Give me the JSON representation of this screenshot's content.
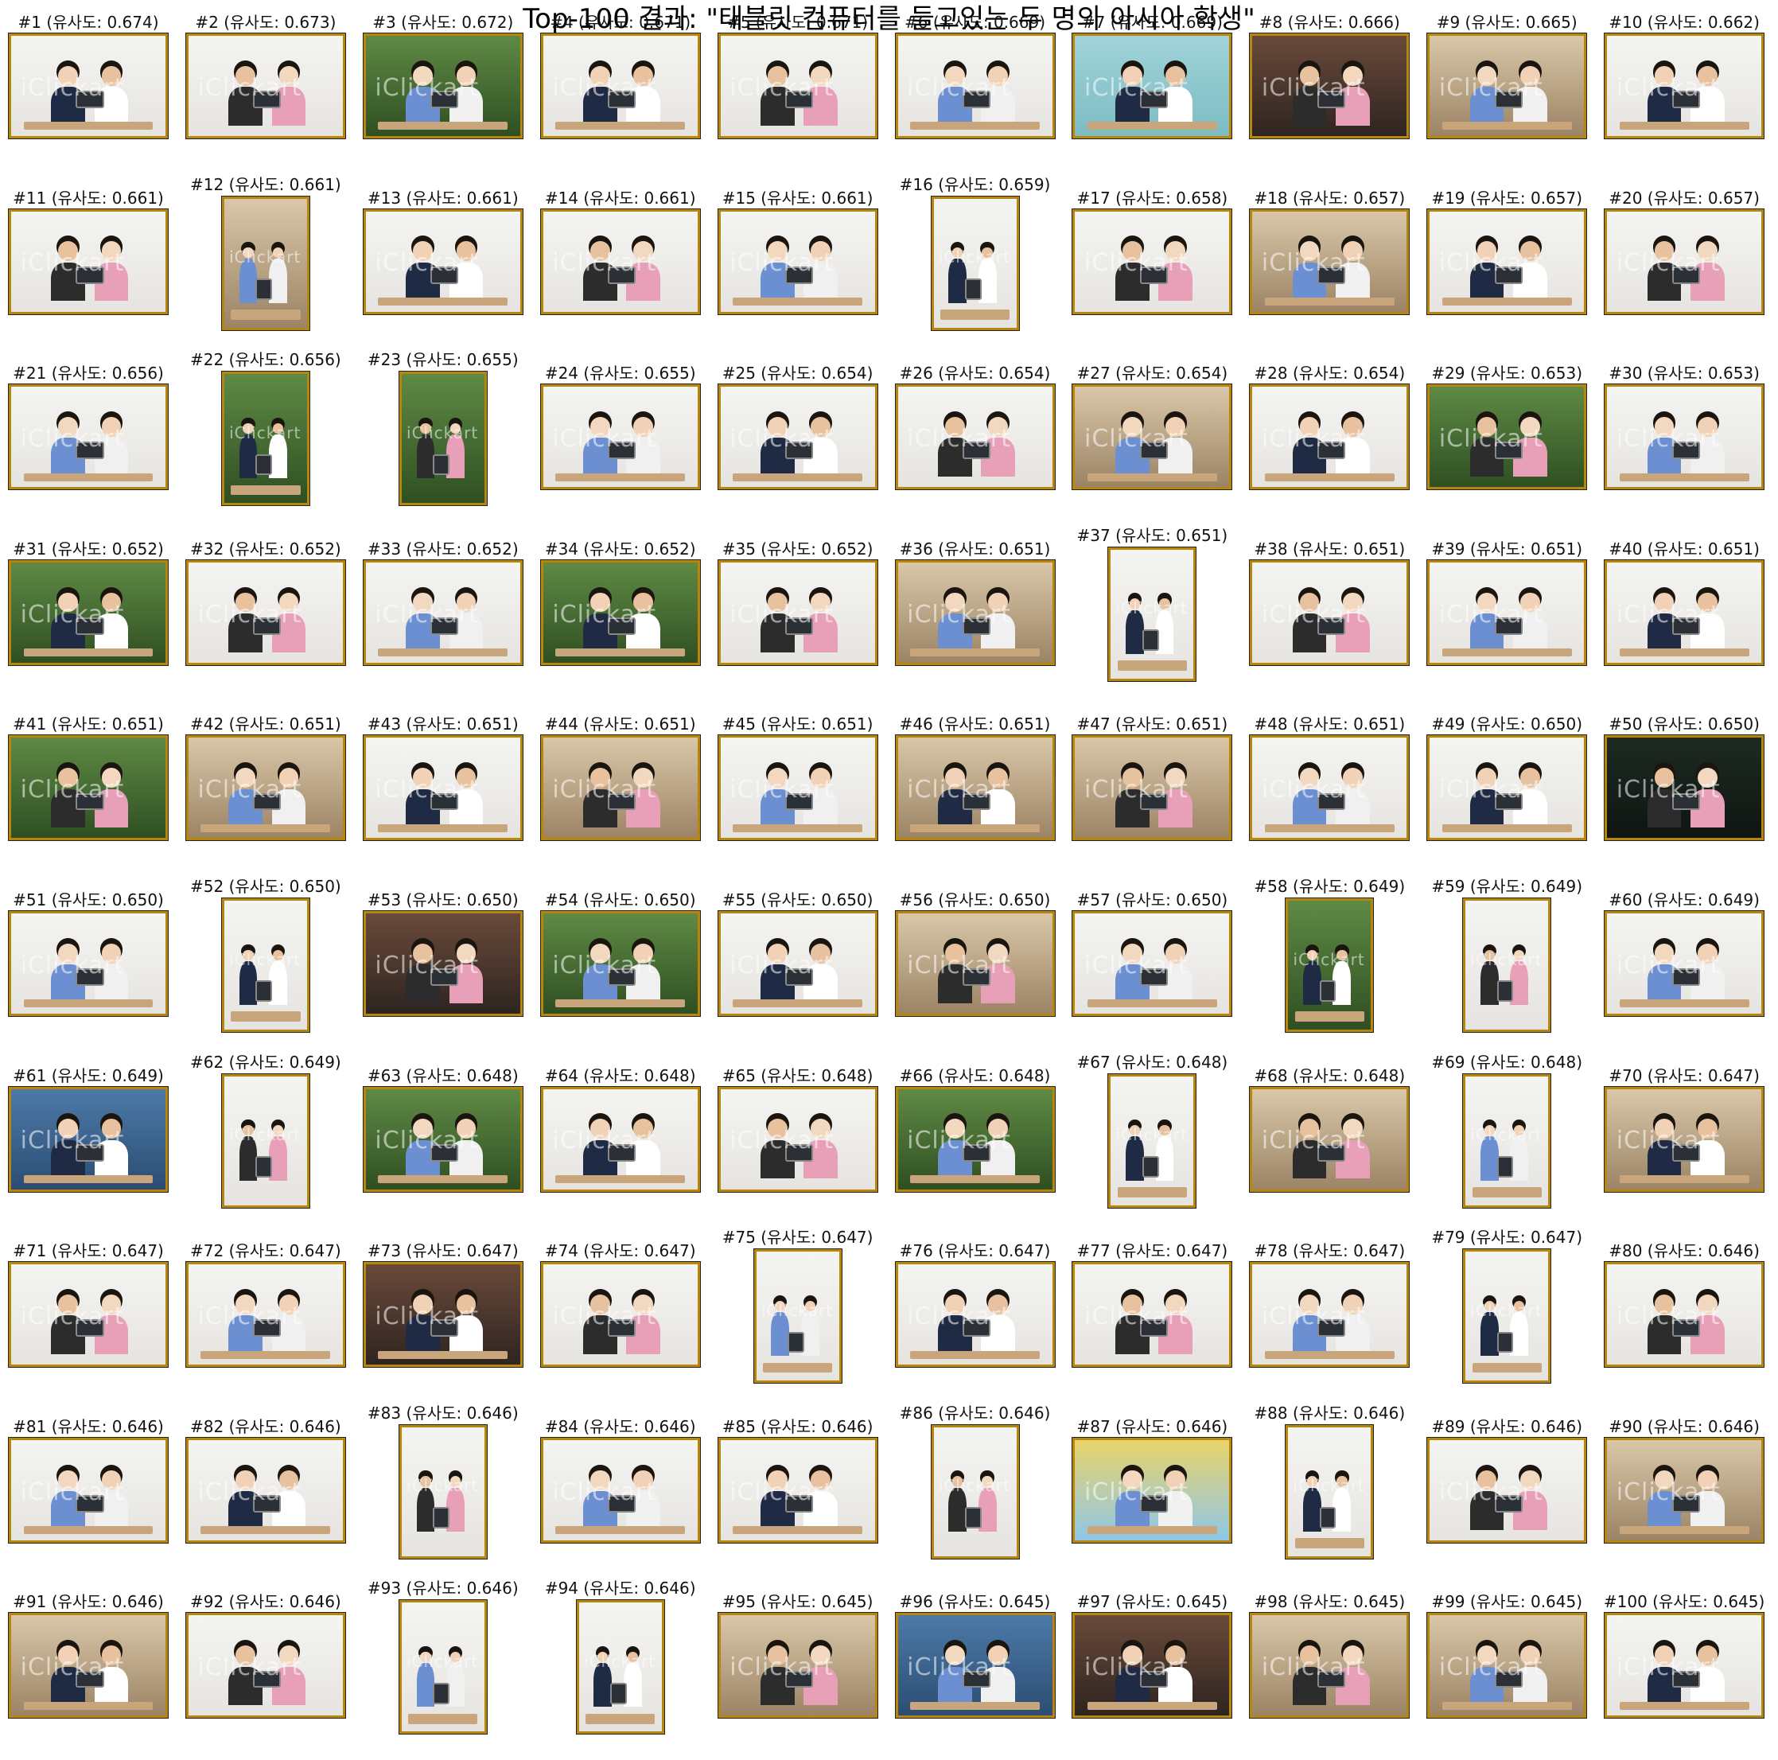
{
  "title": "Top-100 결과: \"태블릿 컴퓨터를 들고있는 두 명의 아시아 학생\"",
  "label_prefix": "유사도",
  "watermark": "iClickart",
  "results": [
    {
      "rank": 1,
      "score": "0.674",
      "orientation": "landscape",
      "scene": "white"
    },
    {
      "rank": 2,
      "score": "0.673",
      "orientation": "landscape",
      "scene": "white"
    },
    {
      "rank": 3,
      "score": "0.672",
      "orientation": "landscape",
      "scene": "outdoor"
    },
    {
      "rank": 4,
      "score": "0.671",
      "orientation": "landscape",
      "scene": "white"
    },
    {
      "rank": 5,
      "score": "0.671",
      "orientation": "landscape",
      "scene": "white"
    },
    {
      "rank": 6,
      "score": "0.669",
      "orientation": "landscape",
      "scene": "white"
    },
    {
      "rank": 7,
      "score": "0.669",
      "orientation": "landscape",
      "scene": "teal"
    },
    {
      "rank": 8,
      "score": "0.666",
      "orientation": "landscape",
      "scene": "hanok"
    },
    {
      "rank": 9,
      "score": "0.665",
      "orientation": "landscape",
      "scene": "room"
    },
    {
      "rank": 10,
      "score": "0.662",
      "orientation": "landscape",
      "scene": "white"
    },
    {
      "rank": 11,
      "score": "0.661",
      "orientation": "landscape",
      "scene": "white"
    },
    {
      "rank": 12,
      "score": "0.661",
      "orientation": "portrait",
      "scene": "room"
    },
    {
      "rank": 13,
      "score": "0.661",
      "orientation": "landscape",
      "scene": "white"
    },
    {
      "rank": 14,
      "score": "0.661",
      "orientation": "landscape",
      "scene": "white"
    },
    {
      "rank": 15,
      "score": "0.661",
      "orientation": "landscape",
      "scene": "white"
    },
    {
      "rank": 16,
      "score": "0.659",
      "orientation": "portrait",
      "scene": "white"
    },
    {
      "rank": 17,
      "score": "0.658",
      "orientation": "landscape",
      "scene": "white"
    },
    {
      "rank": 18,
      "score": "0.657",
      "orientation": "landscape",
      "scene": "room"
    },
    {
      "rank": 19,
      "score": "0.657",
      "orientation": "landscape",
      "scene": "white"
    },
    {
      "rank": 20,
      "score": "0.657",
      "orientation": "landscape",
      "scene": "white"
    },
    {
      "rank": 21,
      "score": "0.656",
      "orientation": "landscape",
      "scene": "white"
    },
    {
      "rank": 22,
      "score": "0.656",
      "orientation": "portrait",
      "scene": "outdoor"
    },
    {
      "rank": 23,
      "score": "0.655",
      "orientation": "portrait",
      "scene": "outdoor"
    },
    {
      "rank": 24,
      "score": "0.655",
      "orientation": "landscape",
      "scene": "white"
    },
    {
      "rank": 25,
      "score": "0.654",
      "orientation": "landscape",
      "scene": "white"
    },
    {
      "rank": 26,
      "score": "0.654",
      "orientation": "landscape",
      "scene": "white"
    },
    {
      "rank": 27,
      "score": "0.654",
      "orientation": "landscape",
      "scene": "room"
    },
    {
      "rank": 28,
      "score": "0.654",
      "orientation": "landscape",
      "scene": "white"
    },
    {
      "rank": 29,
      "score": "0.653",
      "orientation": "landscape",
      "scene": "outdoor"
    },
    {
      "rank": 30,
      "score": "0.653",
      "orientation": "landscape",
      "scene": "white"
    },
    {
      "rank": 31,
      "score": "0.652",
      "orientation": "landscape",
      "scene": "outdoor"
    },
    {
      "rank": 32,
      "score": "0.652",
      "orientation": "landscape",
      "scene": "white"
    },
    {
      "rank": 33,
      "score": "0.652",
      "orientation": "landscape",
      "scene": "white"
    },
    {
      "rank": 34,
      "score": "0.652",
      "orientation": "landscape",
      "scene": "outdoor"
    },
    {
      "rank": 35,
      "score": "0.652",
      "orientation": "landscape",
      "scene": "white"
    },
    {
      "rank": 36,
      "score": "0.651",
      "orientation": "landscape",
      "scene": "room"
    },
    {
      "rank": 37,
      "score": "0.651",
      "orientation": "portrait",
      "scene": "white"
    },
    {
      "rank": 38,
      "score": "0.651",
      "orientation": "landscape",
      "scene": "white"
    },
    {
      "rank": 39,
      "score": "0.651",
      "orientation": "landscape",
      "scene": "white"
    },
    {
      "rank": 40,
      "score": "0.651",
      "orientation": "landscape",
      "scene": "white"
    },
    {
      "rank": 41,
      "score": "0.651",
      "orientation": "landscape",
      "scene": "outdoor"
    },
    {
      "rank": 42,
      "score": "0.651",
      "orientation": "landscape",
      "scene": "room"
    },
    {
      "rank": 43,
      "score": "0.651",
      "orientation": "landscape",
      "scene": "white"
    },
    {
      "rank": 44,
      "score": "0.651",
      "orientation": "landscape",
      "scene": "room"
    },
    {
      "rank": 45,
      "score": "0.651",
      "orientation": "landscape",
      "scene": "white"
    },
    {
      "rank": 46,
      "score": "0.651",
      "orientation": "landscape",
      "scene": "room"
    },
    {
      "rank": 47,
      "score": "0.651",
      "orientation": "landscape",
      "scene": "room"
    },
    {
      "rank": 48,
      "score": "0.651",
      "orientation": "landscape",
      "scene": "white"
    },
    {
      "rank": 49,
      "score": "0.650",
      "orientation": "landscape",
      "scene": "white"
    },
    {
      "rank": 50,
      "score": "0.650",
      "orientation": "landscape",
      "scene": "dark"
    },
    {
      "rank": 51,
      "score": "0.650",
      "orientation": "landscape",
      "scene": "white"
    },
    {
      "rank": 52,
      "score": "0.650",
      "orientation": "portrait",
      "scene": "white"
    },
    {
      "rank": 53,
      "score": "0.650",
      "orientation": "landscape",
      "scene": "hanok"
    },
    {
      "rank": 54,
      "score": "0.650",
      "orientation": "landscape",
      "scene": "outdoor"
    },
    {
      "rank": 55,
      "score": "0.650",
      "orientation": "landscape",
      "scene": "white"
    },
    {
      "rank": 56,
      "score": "0.650",
      "orientation": "landscape",
      "scene": "room"
    },
    {
      "rank": 57,
      "score": "0.650",
      "orientation": "landscape",
      "scene": "white"
    },
    {
      "rank": 58,
      "score": "0.649",
      "orientation": "portrait",
      "scene": "outdoor"
    },
    {
      "rank": 59,
      "score": "0.649",
      "orientation": "portrait",
      "scene": "white"
    },
    {
      "rank": 60,
      "score": "0.649",
      "orientation": "landscape",
      "scene": "white"
    },
    {
      "rank": 61,
      "score": "0.649",
      "orientation": "landscape",
      "scene": "blue"
    },
    {
      "rank": 62,
      "score": "0.649",
      "orientation": "portrait",
      "scene": "white"
    },
    {
      "rank": 63,
      "score": "0.648",
      "orientation": "landscape",
      "scene": "outdoor"
    },
    {
      "rank": 64,
      "score": "0.648",
      "orientation": "landscape",
      "scene": "white"
    },
    {
      "rank": 65,
      "score": "0.648",
      "orientation": "landscape",
      "scene": "white"
    },
    {
      "rank": 66,
      "score": "0.648",
      "orientation": "landscape",
      "scene": "outdoor"
    },
    {
      "rank": 67,
      "score": "0.648",
      "orientation": "portrait",
      "scene": "white"
    },
    {
      "rank": 68,
      "score": "0.648",
      "orientation": "landscape",
      "scene": "room"
    },
    {
      "rank": 69,
      "score": "0.648",
      "orientation": "portrait",
      "scene": "white"
    },
    {
      "rank": 70,
      "score": "0.647",
      "orientation": "landscape",
      "scene": "room"
    },
    {
      "rank": 71,
      "score": "0.647",
      "orientation": "landscape",
      "scene": "white"
    },
    {
      "rank": 72,
      "score": "0.647",
      "orientation": "landscape",
      "scene": "white"
    },
    {
      "rank": 73,
      "score": "0.647",
      "orientation": "landscape",
      "scene": "hanok"
    },
    {
      "rank": 74,
      "score": "0.647",
      "orientation": "landscape",
      "scene": "white"
    },
    {
      "rank": 75,
      "score": "0.647",
      "orientation": "portrait",
      "scene": "white"
    },
    {
      "rank": 76,
      "score": "0.647",
      "orientation": "landscape",
      "scene": "white"
    },
    {
      "rank": 77,
      "score": "0.647",
      "orientation": "landscape",
      "scene": "white"
    },
    {
      "rank": 78,
      "score": "0.647",
      "orientation": "landscape",
      "scene": "white"
    },
    {
      "rank": 79,
      "score": "0.647",
      "orientation": "portrait",
      "scene": "white"
    },
    {
      "rank": 80,
      "score": "0.646",
      "orientation": "landscape",
      "scene": "white"
    },
    {
      "rank": 81,
      "score": "0.646",
      "orientation": "landscape",
      "scene": "white"
    },
    {
      "rank": 82,
      "score": "0.646",
      "orientation": "landscape",
      "scene": "white"
    },
    {
      "rank": 83,
      "score": "0.646",
      "orientation": "portrait",
      "scene": "white"
    },
    {
      "rank": 84,
      "score": "0.646",
      "orientation": "landscape",
      "scene": "white"
    },
    {
      "rank": 85,
      "score": "0.646",
      "orientation": "landscape",
      "scene": "white"
    },
    {
      "rank": 86,
      "score": "0.646",
      "orientation": "portrait",
      "scene": "white"
    },
    {
      "rank": 87,
      "score": "0.646",
      "orientation": "landscape",
      "scene": "colorful"
    },
    {
      "rank": 88,
      "score": "0.646",
      "orientation": "portrait",
      "scene": "white"
    },
    {
      "rank": 89,
      "score": "0.646",
      "orientation": "landscape",
      "scene": "white"
    },
    {
      "rank": 90,
      "score": "0.646",
      "orientation": "landscape",
      "scene": "room"
    },
    {
      "rank": 91,
      "score": "0.646",
      "orientation": "landscape",
      "scene": "room"
    },
    {
      "rank": 92,
      "score": "0.646",
      "orientation": "landscape",
      "scene": "white"
    },
    {
      "rank": 93,
      "score": "0.646",
      "orientation": "portrait",
      "scene": "white"
    },
    {
      "rank": 94,
      "score": "0.646",
      "orientation": "portrait",
      "scene": "white"
    },
    {
      "rank": 95,
      "score": "0.645",
      "orientation": "landscape",
      "scene": "room"
    },
    {
      "rank": 96,
      "score": "0.645",
      "orientation": "landscape",
      "scene": "blue"
    },
    {
      "rank": 97,
      "score": "0.645",
      "orientation": "landscape",
      "scene": "hanok"
    },
    {
      "rank": 98,
      "score": "0.645",
      "orientation": "landscape",
      "scene": "room"
    },
    {
      "rank": 99,
      "score": "0.645",
      "orientation": "landscape",
      "scene": "room"
    },
    {
      "rank": 100,
      "score": "0.645",
      "orientation": "landscape",
      "scene": "white"
    }
  ],
  "scene_colors": {
    "white": [
      "#f4f4f2",
      "#e6e4e0"
    ],
    "outdoor": [
      "#5f8a45",
      "#2f4f22"
    ],
    "teal": [
      "#9fd3d8",
      "#7dbcc3"
    ],
    "hanok": [
      "#6a4a3a",
      "#2e2420"
    ],
    "room": [
      "#d9c7a8",
      "#9c8466"
    ],
    "dark": [
      "#1d2a22",
      "#0f1512"
    ],
    "blue": [
      "#4d7aa8",
      "#2b4d73"
    ],
    "colorful": [
      "#e9d36a",
      "#8fc7e8"
    ]
  },
  "frame_color": "#b8860b"
}
